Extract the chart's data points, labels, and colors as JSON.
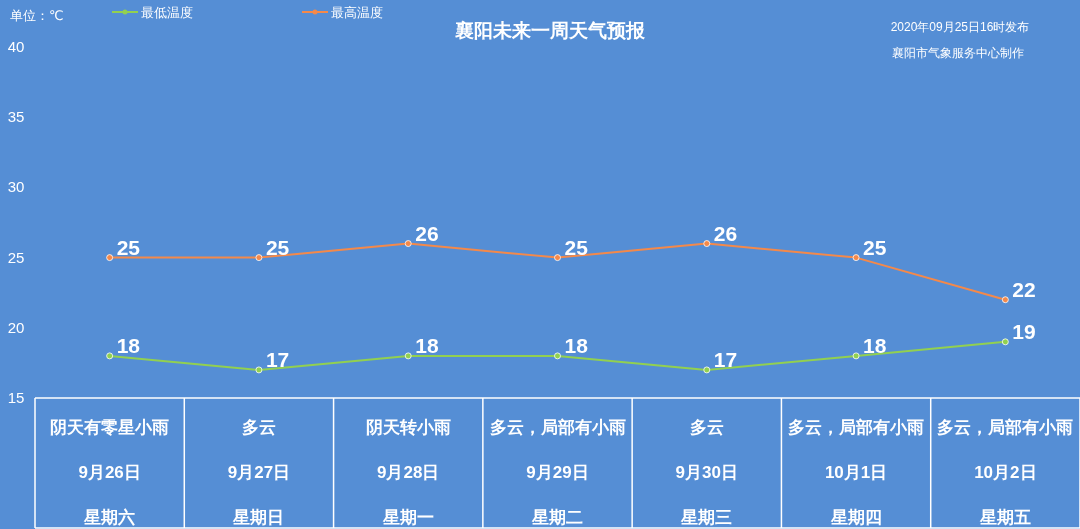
{
  "chart_data": {
    "type": "line",
    "title": "襄阳未来一周天气预报",
    "annotations": [
      "单位：℃",
      "2020年09月25日16时发布",
      "襄阳市气象服务中心制作",
      "阴天有零星小雨",
      "多云",
      "阴天转小雨",
      "多云，局部有小雨",
      "多云",
      "多云，局部有小雨",
      "多云，局部有小雨",
      "星期六",
      "星期日",
      "星期一",
      "星期二",
      "星期三",
      "星期四",
      "星期五"
    ],
    "categories": [
      "9月26日",
      "9月27日",
      "9月28日",
      "9月29日",
      "9月30日",
      "10月1日",
      "10月2日"
    ],
    "series": [
      {
        "name": "最低温度",
        "color": "#92d050",
        "values": [
          18,
          17,
          18,
          18,
          17,
          18,
          19
        ]
      },
      {
        "name": "最高温度",
        "color": "#f4894a",
        "values": [
          25,
          25,
          26,
          25,
          26,
          25,
          22
        ]
      }
    ],
    "ylim": [
      15,
      40
    ],
    "yticks": [
      15,
      20,
      25,
      30,
      35,
      40
    ],
    "data_labels": true,
    "marker": "circle",
    "legend": "top left",
    "grid": false
  }
}
